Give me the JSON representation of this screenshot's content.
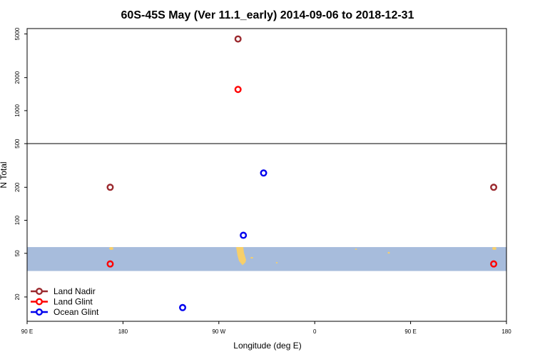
{
  "chart_data": {
    "type": "scatter",
    "title": "60S-45S May (Ver 11.1_early)   2014-09-06 to 2018-12-31",
    "xlabel": "Longitude (deg E)",
    "ylabel": "N Total",
    "x_ticks": [
      {
        "value": 90,
        "label": "90 E"
      },
      {
        "value": 180,
        "label": "180"
      },
      {
        "value": 270,
        "label": "90 W"
      },
      {
        "value": 360,
        "label": "0"
      },
      {
        "value": 450,
        "label": "90 E"
      },
      {
        "value": 540,
        "label": "180"
      }
    ],
    "xlim": [
      90,
      540
    ],
    "y_scale": "log",
    "ylim": [
      12,
      5600
    ],
    "y_ticks": [
      {
        "value": 20,
        "label": "20"
      },
      {
        "value": 50,
        "label": "50"
      },
      {
        "value": 100,
        "label": "100"
      },
      {
        "value": 200,
        "label": "200"
      },
      {
        "value": 500,
        "label": "500"
      },
      {
        "value": 1000,
        "label": "1000"
      },
      {
        "value": 2000,
        "label": "2000"
      },
      {
        "value": 5000,
        "label": "5000"
      }
    ],
    "panel_split_value": 500,
    "band": {
      "from": 34.5,
      "to": 57,
      "color": "#a7bcdc"
    },
    "land_color": "#f7cf6a",
    "series": [
      {
        "name": "Land Nadir",
        "color": "#9b2a2f",
        "points": [
          {
            "x": 168,
            "y": 200
          },
          {
            "x": 288,
            "y": 4500
          },
          {
            "x": 528,
            "y": 200
          }
        ]
      },
      {
        "name": "Land Glint",
        "color": "#ff0000",
        "points": [
          {
            "x": 168,
            "y": 40
          },
          {
            "x": 288,
            "y": 1560
          },
          {
            "x": 528,
            "y": 40
          }
        ]
      },
      {
        "name": "Ocean Glint",
        "color": "#0000ee",
        "points": [
          {
            "x": 236,
            "y": 16
          },
          {
            "x": 293,
            "y": 73
          },
          {
            "x": 312,
            "y": 270
          }
        ]
      }
    ],
    "legend_position": "bottom-left"
  }
}
